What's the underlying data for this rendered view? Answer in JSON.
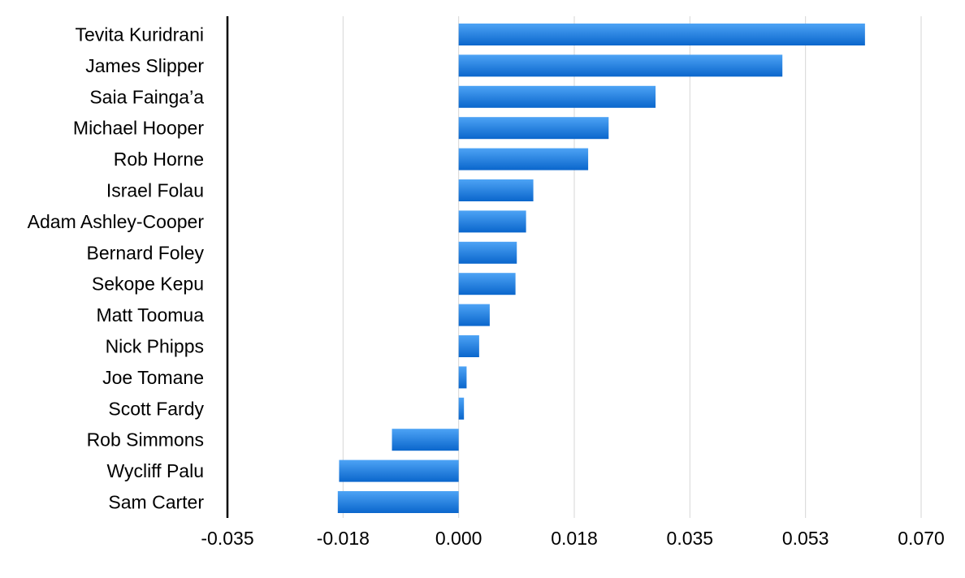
{
  "chart_data": {
    "type": "bar",
    "orientation": "horizontal",
    "title": "",
    "xlabel": "",
    "ylabel": "",
    "categories": [
      "Tevita Kuridrani",
      "James Slipper",
      "Saia Fainga’a",
      "Michael Hooper",
      "Rob Horne",
      "Israel Folau",
      "Adam Ashley-Cooper",
      "Bernard Foley",
      "Sekope Kepu",
      "Matt Toomua",
      "Nick Phipps",
      "Joe Tomane",
      "Scott Fardy",
      "Rob Simmons",
      "Wycliff Palu",
      "Sam Carter"
    ],
    "values": [
      0.0615,
      0.049,
      0.0298,
      0.0227,
      0.0196,
      0.0113,
      0.0102,
      0.0088,
      0.0086,
      0.0047,
      0.0031,
      0.0012,
      0.0008,
      -0.0101,
      -0.0181,
      -0.0183
    ],
    "xlim": [
      -0.035,
      0.07
    ],
    "xticks": [
      "-0.035",
      "-0.018",
      "0.000",
      "0.018",
      "0.035",
      "0.053",
      "0.070"
    ],
    "xtick_values": [
      -0.035,
      -0.0175,
      0,
      0.0175,
      0.035,
      0.0525,
      0.07
    ],
    "grid": true,
    "legend": "none",
    "colors": {
      "bar_top": "#4da3f5",
      "bar_bottom": "#0a66cc",
      "grid": "#d6d6d6",
      "axis": "#000000"
    }
  }
}
